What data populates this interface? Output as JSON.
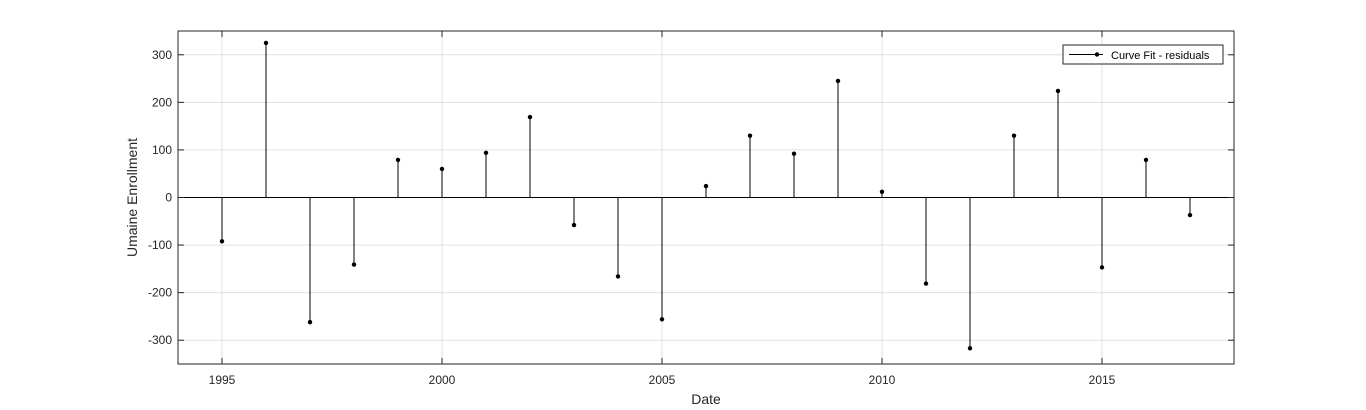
{
  "chart_data": {
    "type": "stem",
    "title": "",
    "xlabel": "Date",
    "ylabel": "Umaine Enrollment",
    "xlim": [
      1994,
      2018
    ],
    "ylim": [
      -350,
      350
    ],
    "xticks": [
      1995,
      2000,
      2005,
      2010,
      2015
    ],
    "yticks": [
      -300,
      -200,
      -100,
      0,
      100,
      200,
      300
    ],
    "grid": true,
    "legend_position": "top-right",
    "series": [
      {
        "name": "Curve Fit - residuals",
        "color": "#000000",
        "x": [
          1995,
          1996,
          1997,
          1998,
          1999,
          2000,
          2001,
          2002,
          2003,
          2004,
          2005,
          2006,
          2007,
          2008,
          2009,
          2010,
          2011,
          2012,
          2013,
          2014,
          2015,
          2016,
          2017
        ],
        "y": [
          -92,
          325,
          -262,
          -141,
          79,
          60,
          94,
          169,
          -58,
          -166,
          -256,
          24,
          130,
          92,
          245,
          12,
          -181,
          -317,
          130,
          224,
          -147,
          79,
          -37
        ]
      }
    ]
  }
}
